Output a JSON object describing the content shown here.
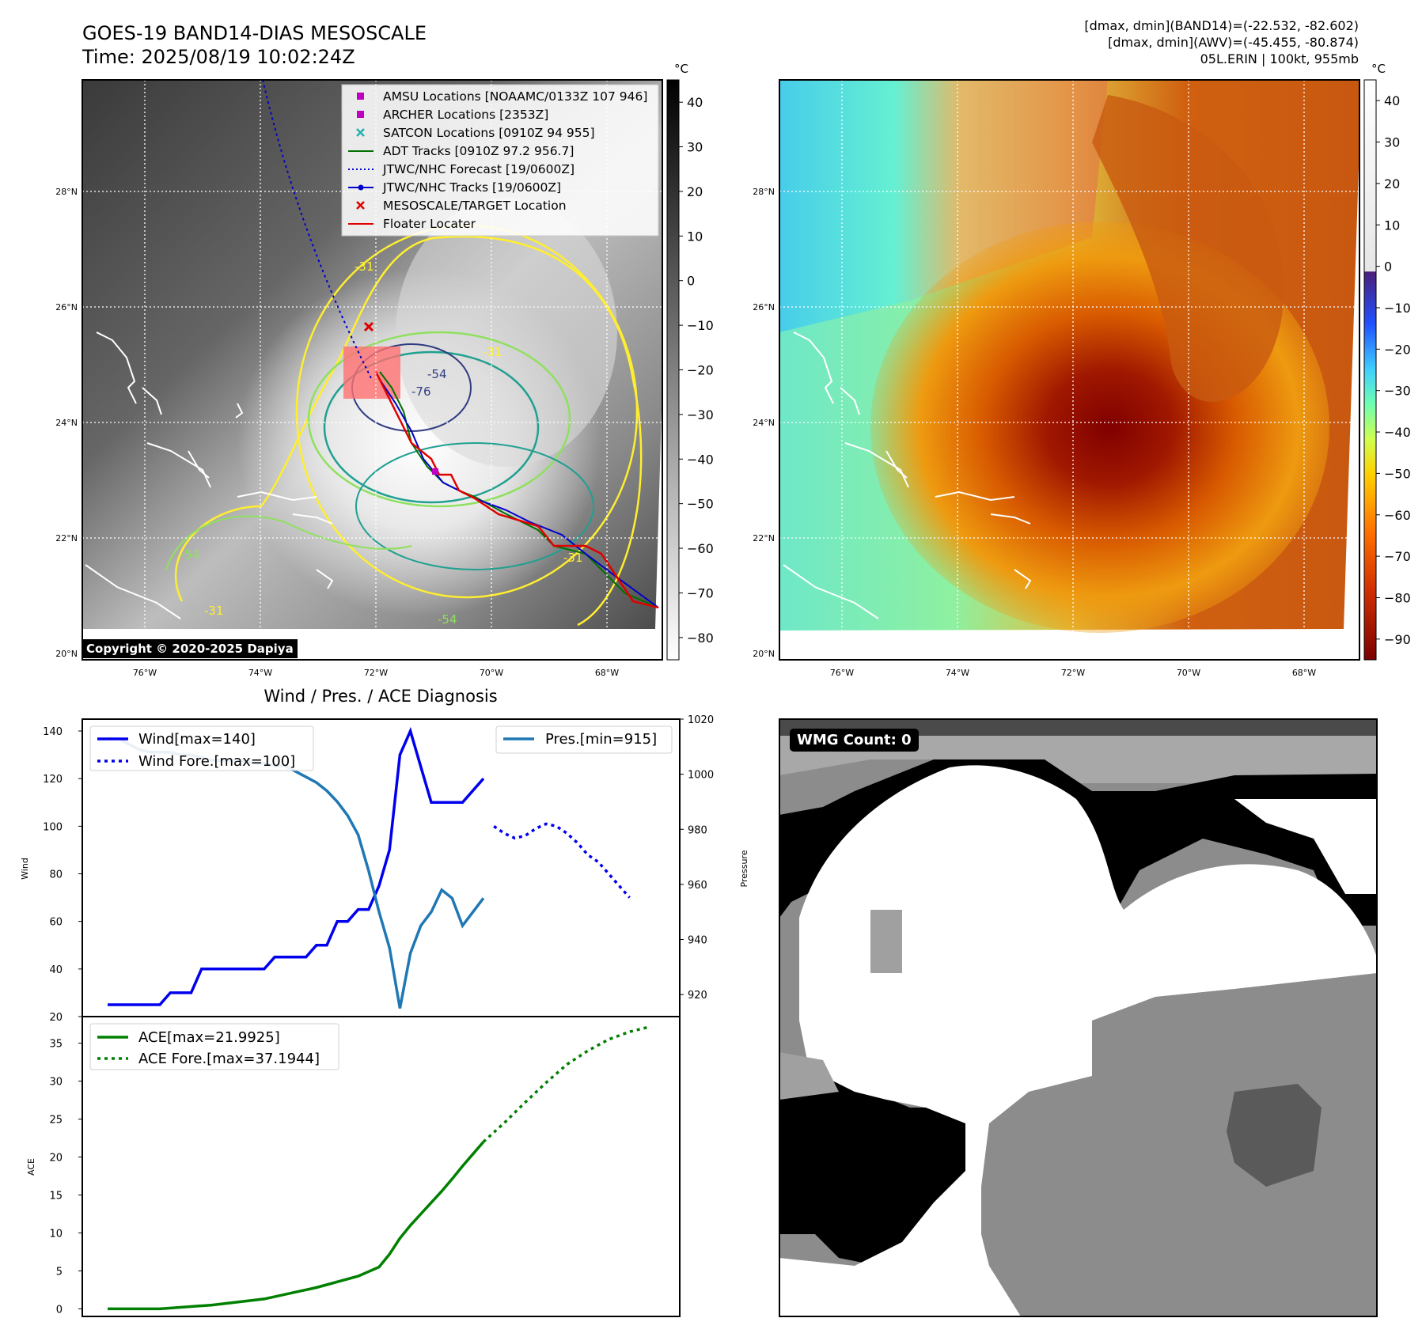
{
  "header": {
    "title_line1": "GOES-19 BAND14-DIAS MESOSCALE",
    "title_line2": "Time: 2025/08/19 10:02:24Z",
    "stats_line1": "[dmax, dmin](BAND14)=(-22.532, -82.602)",
    "stats_line2": "[dmax, dmin](AWV)=(-45.455, -80.874)",
    "stats_line3": "05L.ERIN | 100kt, 955mb"
  },
  "map": {
    "lat_ticks": [
      "28°N",
      "26°N",
      "24°N",
      "22°N",
      "20°N"
    ],
    "lon_ticks": [
      "76°W",
      "74°W",
      "72°W",
      "70°W",
      "68°W"
    ],
    "copyright": "Copyright © 2020-2025 Dapiya",
    "contour_labels": [
      "-31",
      "-54",
      "-54",
      "-31",
      "-54",
      "-76",
      "-31",
      "-31"
    ],
    "legend": [
      {
        "label": "AMSU Locations [NOAAMC/0133Z 107 946]",
        "color": "#c000c0",
        "marker": "square"
      },
      {
        "label": "ARCHER Locations [2353Z]",
        "color": "#c000c0",
        "marker": "square"
      },
      {
        "label": "SATCON Locations [0910Z 94 955]",
        "color": "#20b0b0",
        "marker": "x"
      },
      {
        "label": "ADT Tracks [0910Z 97.2 956.7]",
        "color": "#007000",
        "marker": "line"
      },
      {
        "label": "JTWC/NHC Forecast [19/0600Z]",
        "color": "#0000cc",
        "marker": "dotted"
      },
      {
        "label": "JTWC/NHC Tracks [19/0600Z]",
        "color": "#0000cc",
        "marker": "line-dot"
      },
      {
        "label": "MESOSCALE/TARGET Location",
        "color": "#e00000",
        "marker": "x"
      },
      {
        "label": "Floater Locater",
        "color": "#e00000",
        "marker": "line"
      }
    ]
  },
  "colorbar_left": {
    "unit": "°C",
    "ticks": [
      "40",
      "30",
      "20",
      "10",
      "0",
      "−10",
      "−20",
      "−30",
      "−40",
      "−50",
      "−60",
      "−70",
      "−80"
    ]
  },
  "colorbar_right": {
    "unit": "°C",
    "ticks": [
      "40",
      "30",
      "20",
      "10",
      "0",
      "−10",
      "−20",
      "−30",
      "−40",
      "−50",
      "−60",
      "−70",
      "−80",
      "−90"
    ]
  },
  "wmg": {
    "label": "WMG Count: 0"
  },
  "chart_data": [
    {
      "type": "line",
      "title": "Wind / Pres. / ACE Diagnosis",
      "ylabel": "Wind",
      "y2label": "Pressure",
      "ylim": [
        20,
        145
      ],
      "y2lim": [
        912,
        1020
      ],
      "y_ticks": [
        "140",
        "120",
        "100",
        "80",
        "60",
        "40",
        "20"
      ],
      "y2_ticks": [
        "1020",
        "1000",
        "980",
        "960",
        "940",
        "920"
      ],
      "series": [
        {
          "name": "Wind[max=140]",
          "axis": "left",
          "style": "solid",
          "color": "#0000ee",
          "x": [
            0,
            1,
            2,
            3,
            4,
            5,
            6,
            7,
            8,
            9,
            10,
            11,
            12,
            13,
            14,
            15,
            16,
            17,
            18,
            19,
            20,
            21,
            22,
            23,
            24,
            25,
            26,
            27,
            28,
            29,
            30,
            31,
            32,
            33,
            34,
            35,
            36
          ],
          "values": [
            25,
            25,
            25,
            25,
            25,
            25,
            30,
            30,
            30,
            40,
            40,
            40,
            40,
            40,
            40,
            40,
            45,
            45,
            45,
            45,
            50,
            50,
            60,
            60,
            65,
            65,
            75,
            90,
            130,
            140,
            125,
            110,
            110,
            110,
            110,
            115,
            120
          ]
        },
        {
          "name": "Wind Fore.[max=100]",
          "axis": "left",
          "style": "dotted",
          "color": "#0000ee",
          "x": [
            37,
            38,
            39,
            40,
            41,
            42,
            43,
            44,
            45,
            46,
            47,
            48,
            49,
            50
          ],
          "values": [
            100,
            97,
            95,
            96,
            99,
            101,
            100,
            97,
            93,
            88,
            85,
            80,
            75,
            70
          ]
        },
        {
          "name": "Pres.[min=915]",
          "axis": "right",
          "style": "solid",
          "color": "#1f77b4",
          "x": [
            0,
            1,
            2,
            3,
            4,
            5,
            6,
            7,
            8,
            9,
            10,
            11,
            12,
            13,
            14,
            15,
            16,
            17,
            18,
            19,
            20,
            21,
            22,
            23,
            24,
            25,
            26,
            27,
            28,
            29,
            30,
            31,
            32,
            33,
            34,
            35,
            36
          ],
          "values": [
            1013,
            1013,
            1011,
            1009,
            1008,
            1008,
            1008,
            1007,
            1007,
            1006,
            1005,
            1005,
            1005,
            1005,
            1004,
            1004,
            1003,
            1003,
            1001,
            999,
            997,
            994,
            990,
            985,
            978,
            965,
            950,
            937,
            915,
            935,
            945,
            950,
            958,
            955,
            945,
            950,
            955
          ]
        }
      ]
    },
    {
      "type": "line",
      "ylabel": "ACE",
      "ylim": [
        -1,
        38.5
      ],
      "y_ticks": [
        "35",
        "30",
        "25",
        "20",
        "15",
        "10",
        "5",
        "0"
      ],
      "series": [
        {
          "name": "ACE[max=21.9925]",
          "style": "solid",
          "color": "#008000",
          "x": [
            0,
            5,
            10,
            15,
            20,
            24,
            26,
            27,
            28,
            29,
            30,
            31,
            32,
            33,
            34,
            35,
            36
          ],
          "values": [
            0,
            0,
            0.5,
            1.3,
            2.8,
            4.3,
            5.5,
            7.2,
            9.3,
            11,
            12.5,
            14,
            15.5,
            17.1,
            18.8,
            20.4,
            21.99
          ]
        },
        {
          "name": "ACE Fore.[max=37.1944]",
          "style": "dotted",
          "color": "#008000",
          "x": [
            36,
            38,
            40,
            42,
            44,
            46,
            48,
            50,
            52
          ],
          "values": [
            22,
            24.5,
            27.2,
            29.8,
            32.2,
            34,
            35.5,
            36.5,
            37.19
          ]
        }
      ]
    }
  ]
}
